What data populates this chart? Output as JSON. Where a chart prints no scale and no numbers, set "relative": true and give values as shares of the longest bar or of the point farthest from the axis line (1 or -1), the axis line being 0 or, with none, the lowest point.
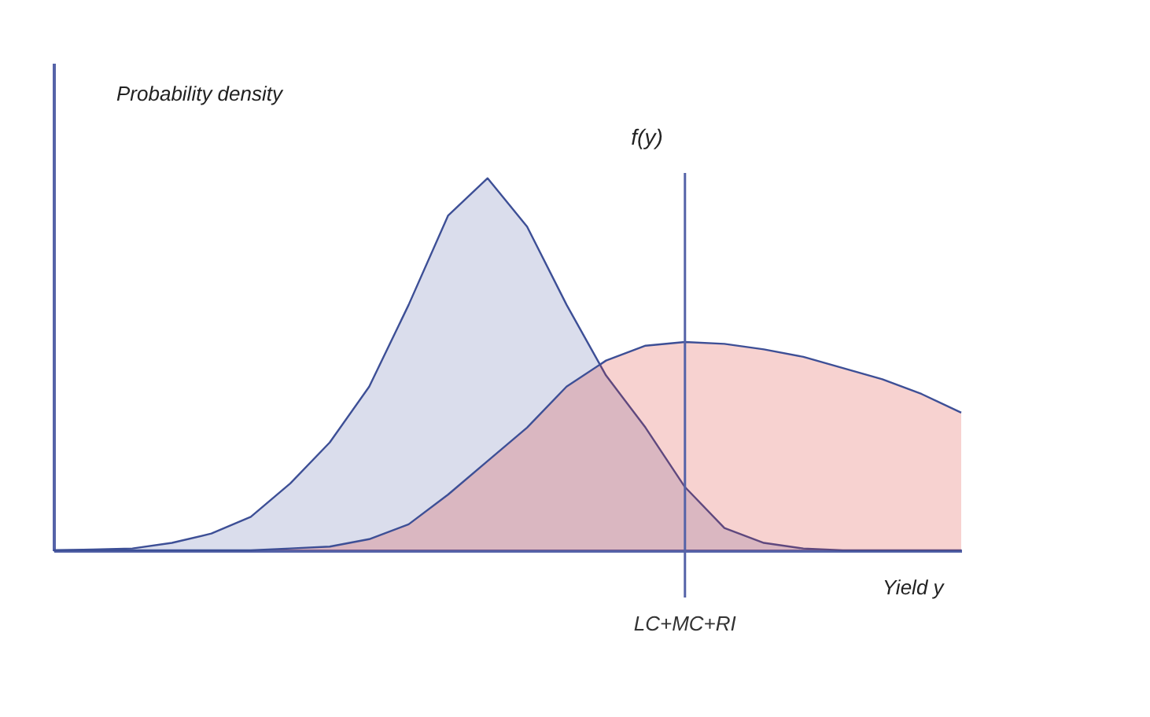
{
  "chart_data": {
    "type": "area",
    "relative": true,
    "xlabel": "Yield y",
    "ylabel": "Probability density",
    "categories": [
      null,
      null,
      null,
      null,
      null,
      null,
      null,
      null,
      null,
      null,
      null,
      null,
      null,
      null,
      null,
      null,
      null,
      null,
      null,
      null,
      null,
      null,
      null,
      null
    ],
    "series": [
      {
        "color": "#5563a8",
        "values": [
          0,
          0.002,
          0.005,
          0.02,
          0.045,
          0.09,
          0.18,
          0.29,
          0.44,
          0.66,
          0.9,
          1.0,
          0.87,
          0.66,
          0.47,
          0.33,
          0.17,
          0.06,
          0.02,
          0.005,
          0,
          0,
          0,
          0
        ]
      },
      {
        "color": "#d9342b",
        "values": [
          0,
          0,
          0,
          0,
          0,
          0,
          0.005,
          0.01,
          0.03,
          0.07,
          0.15,
          0.24,
          0.33,
          0.44,
          0.51,
          0.55,
          0.56,
          0.555,
          0.54,
          0.52,
          0.49,
          0.46,
          0.42,
          0.37
        ]
      }
    ],
    "annotations": [
      "f(y)",
      "LC+MC+RI"
    ]
  }
}
